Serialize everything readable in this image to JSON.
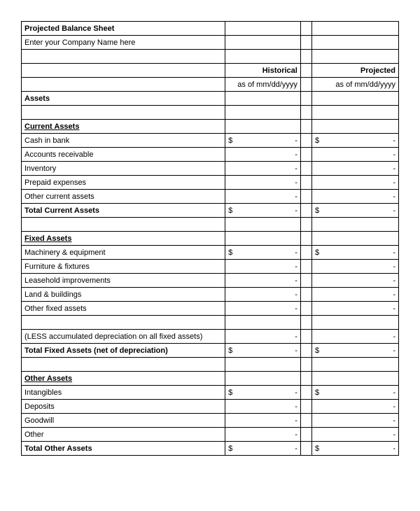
{
  "title": "Projected Balance Sheet",
  "company_placeholder": "Enter your Company Name here",
  "headers": {
    "historical": "Historical",
    "projected": "Projected",
    "as_of_hist": "as of mm/dd/yyyy",
    "as_of_proj": "as of mm/dd/yyyy"
  },
  "sections": {
    "assets": "Assets",
    "current_assets": "Current Assets",
    "fixed_assets": "Fixed Assets",
    "other_assets": "Other Assets"
  },
  "rows": {
    "cash_in_bank": "Cash in bank",
    "accounts_receivable": "Accounts receivable",
    "inventory": "Inventory",
    "prepaid_expenses": "Prepaid expenses",
    "other_current_assets": "Other current assets",
    "total_current_assets": "Total Current Assets",
    "machinery_equipment": "Machinery & equipment",
    "furniture_fixtures": "Furniture & fixtures",
    "leasehold_improvements": "Leasehold improvements",
    "land_buildings": "Land & buildings",
    "other_fixed_assets": "Other fixed assets",
    "less_depreciation": "(LESS accumulated depreciation on all fixed assets)",
    "total_fixed_assets": "Total Fixed Assets (net of depreciation)",
    "intangibles": "Intangibles",
    "deposits": "Deposits",
    "goodwill": "Goodwill",
    "other": "Other",
    "total_other_assets": "Total Other Assets"
  },
  "currency": "$",
  "dash": "-"
}
